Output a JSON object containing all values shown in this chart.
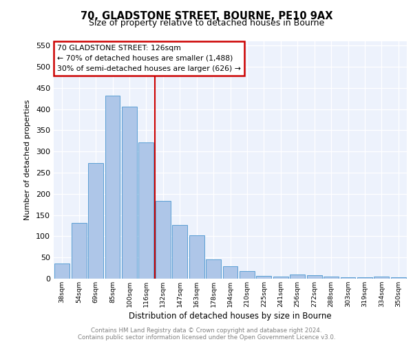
{
  "title1": "70, GLADSTONE STREET, BOURNE, PE10 9AX",
  "title2": "Size of property relative to detached houses in Bourne",
  "xlabel": "Distribution of detached houses by size in Bourne",
  "ylabel": "Number of detached properties",
  "categories": [
    "38sqm",
    "54sqm",
    "69sqm",
    "85sqm",
    "100sqm",
    "116sqm",
    "132sqm",
    "147sqm",
    "163sqm",
    "178sqm",
    "194sqm",
    "210sqm",
    "225sqm",
    "241sqm",
    "256sqm",
    "272sqm",
    "288sqm",
    "303sqm",
    "319sqm",
    "334sqm",
    "350sqm"
  ],
  "values": [
    35,
    132,
    273,
    432,
    405,
    321,
    184,
    126,
    103,
    46,
    30,
    18,
    7,
    5,
    9,
    8,
    5,
    4,
    3,
    5,
    4
  ],
  "bar_color": "#aec6e8",
  "bar_edge_color": "#5a9fd4",
  "vline_x": 5.5,
  "vline_color": "#cc0000",
  "annotation_title": "70 GLADSTONE STREET: 126sqm",
  "annotation_line1": "← 70% of detached houses are smaller (1,488)",
  "annotation_line2": "30% of semi-detached houses are larger (626) →",
  "box_color": "#cc0000",
  "footer1": "Contains HM Land Registry data © Crown copyright and database right 2024.",
  "footer2": "Contains public sector information licensed under the Open Government Licence v3.0.",
  "ylim": [
    0,
    560
  ],
  "yticks": [
    0,
    50,
    100,
    150,
    200,
    250,
    300,
    350,
    400,
    450,
    500,
    550
  ],
  "plot_bg": "#edf2fc"
}
